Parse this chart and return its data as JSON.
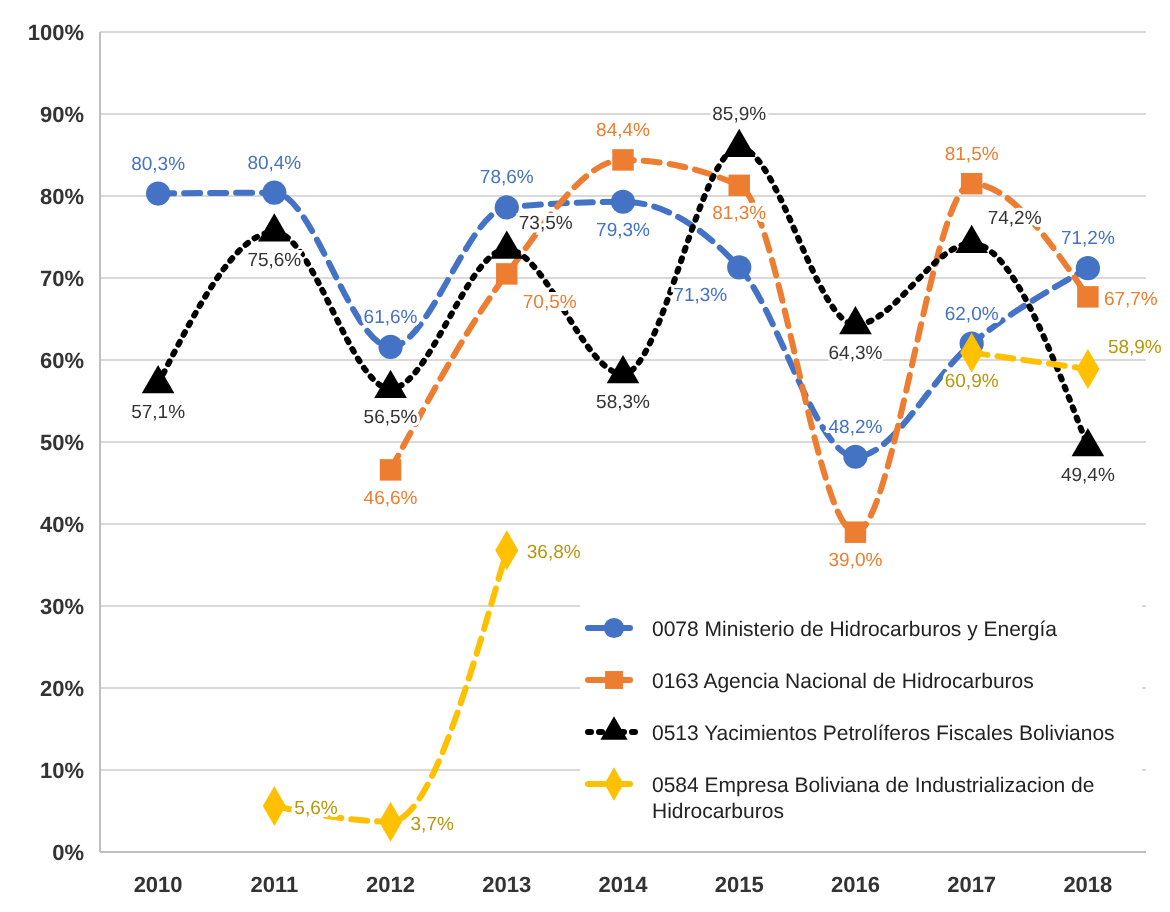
{
  "chart_data": {
    "type": "line",
    "categories": [
      "2010",
      "2011",
      "2012",
      "2013",
      "2014",
      "2015",
      "2016",
      "2017",
      "2018"
    ],
    "ylim": [
      0,
      100
    ],
    "yticks": [
      {
        "value": 0,
        "label": "0%"
      },
      {
        "value": 10,
        "label": "10%"
      },
      {
        "value": 20,
        "label": "20%"
      },
      {
        "value": 30,
        "label": "30%"
      },
      {
        "value": 40,
        "label": "40%"
      },
      {
        "value": 50,
        "label": "50%"
      },
      {
        "value": 60,
        "label": "60%"
      },
      {
        "value": 70,
        "label": "70%"
      },
      {
        "value": 80,
        "label": "80%"
      },
      {
        "value": 90,
        "label": "90%"
      },
      {
        "value": 100,
        "label": "100%"
      }
    ],
    "grid": "y",
    "legend": "bottom right",
    "series": [
      {
        "name": "0078 Ministerio de Hidrocarburos y Energía",
        "color": "#4472c4",
        "marker": "circle",
        "line_style": "dashed",
        "values": [
          80.3,
          80.4,
          61.6,
          78.6,
          79.3,
          71.3,
          48.2,
          62.0,
          71.2
        ],
        "value_labels": [
          "80,3%",
          "80,4%",
          "61,6%",
          "78,6%",
          "79,3%",
          "71,3%",
          "48,2%",
          "62,0%",
          "71,2%"
        ]
      },
      {
        "name": "0163 Agencia Nacional de Hidrocarburos",
        "color": "#ed7d31",
        "marker": "square",
        "line_style": "dashed",
        "values": [
          null,
          null,
          46.6,
          70.5,
          84.4,
          81.3,
          39.0,
          81.5,
          67.7
        ],
        "value_labels": [
          null,
          null,
          "46,6%",
          "70,5%",
          "84,4%",
          "81,3%",
          "39,0%",
          "81,5%",
          "67,7%"
        ]
      },
      {
        "name": "0513 Yacimientos Petrolíferos Fiscales Bolivianos",
        "color": "#000000",
        "marker": "triangle",
        "line_style": "dotted",
        "values": [
          57.1,
          75.6,
          56.5,
          73.5,
          58.3,
          85.9,
          64.3,
          74.2,
          49.4
        ],
        "value_labels": [
          "57,1%",
          "75,6%",
          "56,5%",
          "73,5%",
          "58,3%",
          "85,9%",
          "64,3%",
          "74,2%",
          "49,4%"
        ]
      },
      {
        "name": "0584 Empresa Boliviana de Industrializacion de Hidrocarburos",
        "color": "#ffc000",
        "marker": "diamond",
        "line_style": "dashed",
        "values": [
          null,
          5.6,
          3.7,
          36.8,
          null,
          null,
          null,
          60.9,
          58.9
        ],
        "value_labels": [
          null,
          "5,6%",
          "3,7%",
          "36,8%",
          null,
          null,
          null,
          "60,9%",
          "58,9%"
        ]
      }
    ]
  }
}
